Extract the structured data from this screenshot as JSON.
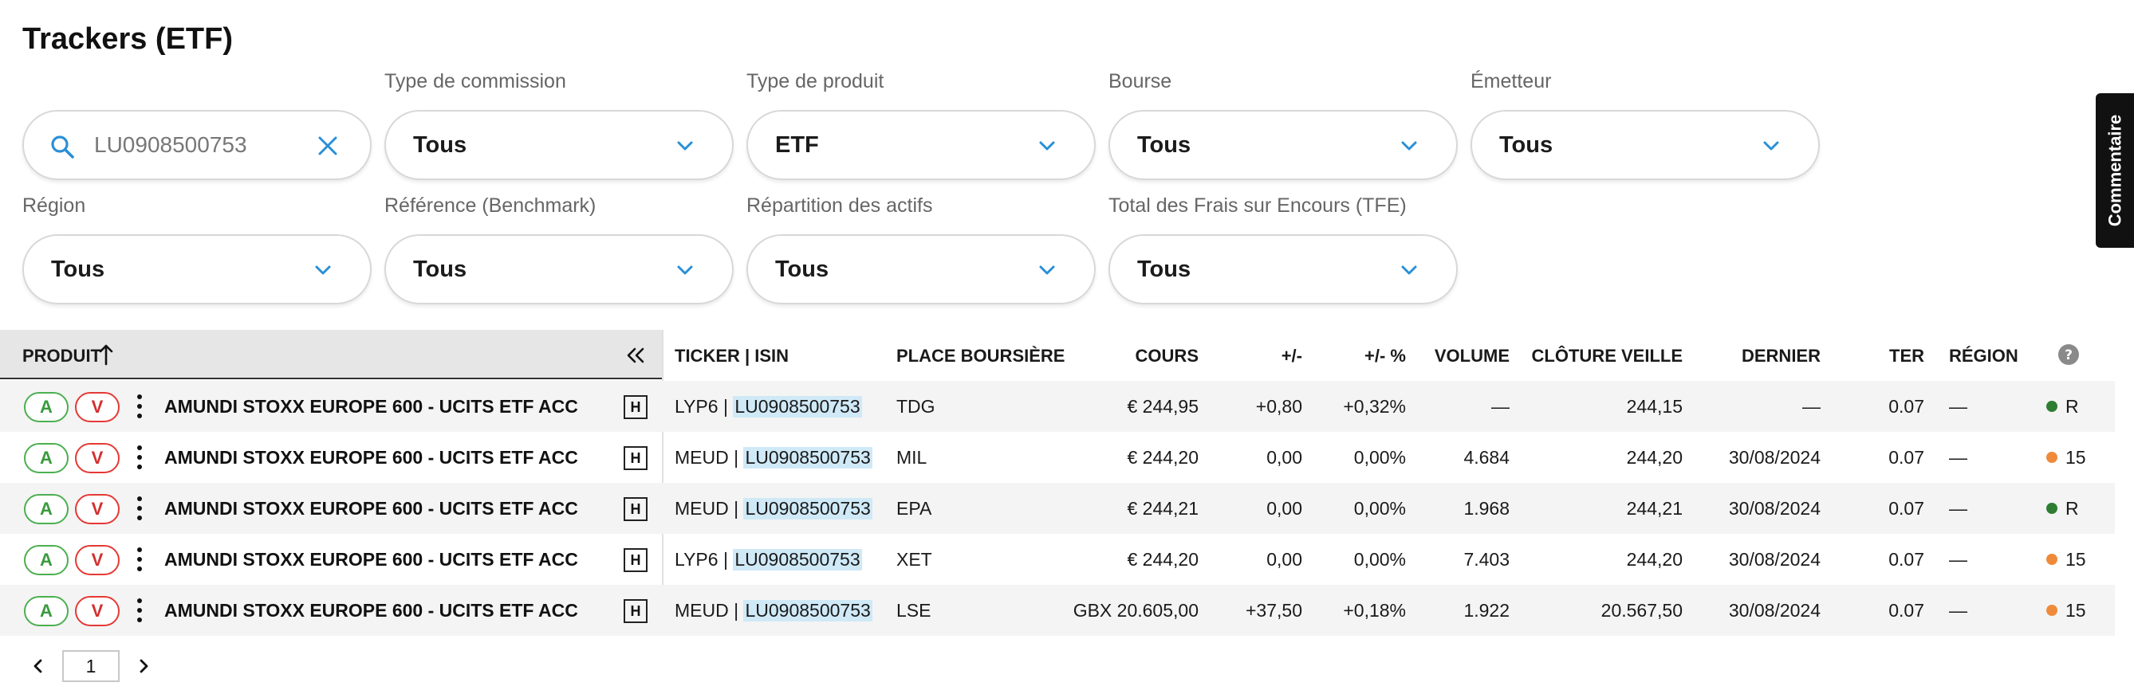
{
  "page": {
    "title": "Trackers (ETF)"
  },
  "filters": {
    "search": {
      "value": "LU0908500753"
    },
    "row1": [
      {
        "label": "Type de commission",
        "value": "Tous"
      },
      {
        "label": "Type de produit",
        "value": "ETF"
      },
      {
        "label": "Bourse",
        "value": "Tous"
      },
      {
        "label": "Émetteur",
        "value": "Tous"
      }
    ],
    "row2": [
      {
        "label": "Région",
        "value": "Tous"
      },
      {
        "label": "Référence (Benchmark)",
        "value": "Tous"
      },
      {
        "label": "Répartition des actifs",
        "value": "Tous"
      },
      {
        "label": "Total des Frais sur Encours (TFE)",
        "value": "Tous"
      }
    ]
  },
  "side_tab": {
    "label": "Commentaire"
  },
  "table": {
    "headers": {
      "produit": "PRODUIT",
      "ticker_isin": "TICKER | ISIN",
      "place": "PLACE BOURSIÈRE",
      "cours": "COURS",
      "var": "+/-",
      "var_pct": "+/- %",
      "volume": "VOLUME",
      "cloture": "CLÔTURE VEILLE",
      "dernier": "DERNIER",
      "ter": "TER",
      "region": "RÉGION"
    },
    "buy_label": "A",
    "sell_label": "V",
    "h_label": "H",
    "rows": [
      {
        "name": "AMUNDI STOXX EUROPE 600 - UCITS ETF ACC",
        "ticker": "LYP6 | ",
        "isin": "LU0908500753",
        "place": "TDG",
        "cours": "€ 244,95",
        "var": "+0,80",
        "var_pct": "+0,32%",
        "volume": "—",
        "cloture": "244,15",
        "dernier": "—",
        "ter": "0.07",
        "region": "—",
        "status_color": "#2e7d32",
        "status": "R",
        "positive": true
      },
      {
        "name": "AMUNDI STOXX EUROPE 600 - UCITS ETF ACC",
        "ticker": "MEUD | ",
        "isin": "LU0908500753",
        "place": "MIL",
        "cours": "€ 244,20",
        "var": "0,00",
        "var_pct": "0,00%",
        "volume": "4.684",
        "cloture": "244,20",
        "dernier": "30/08/2024",
        "ter": "0.07",
        "region": "—",
        "status_color": "#ef8a3a",
        "status": "15",
        "positive": false
      },
      {
        "name": "AMUNDI STOXX EUROPE 600 - UCITS ETF ACC",
        "ticker": "MEUD | ",
        "isin": "LU0908500753",
        "place": "EPA",
        "cours": "€ 244,21",
        "var": "0,00",
        "var_pct": "0,00%",
        "volume": "1.968",
        "cloture": "244,21",
        "dernier": "30/08/2024",
        "ter": "0.07",
        "region": "—",
        "status_color": "#2e7d32",
        "status": "R",
        "positive": false
      },
      {
        "name": "AMUNDI STOXX EUROPE 600 - UCITS ETF ACC",
        "ticker": "LYP6 | ",
        "isin": "LU0908500753",
        "place": "XET",
        "cours": "€ 244,20",
        "var": "0,00",
        "var_pct": "0,00%",
        "volume": "7.403",
        "cloture": "244,20",
        "dernier": "30/08/2024",
        "ter": "0.07",
        "region": "—",
        "status_color": "#ef8a3a",
        "status": "15",
        "positive": false
      },
      {
        "name": "AMUNDI STOXX EUROPE 600 - UCITS ETF ACC",
        "ticker": "MEUD | ",
        "isin": "LU0908500753",
        "place": "LSE",
        "cours": "GBX 20.605,00",
        "var": "+37,50",
        "var_pct": "+0,18%",
        "volume": "1.922",
        "cloture": "20.567,50",
        "dernier": "30/08/2024",
        "ter": "0.07",
        "region": "—",
        "status_color": "#ef8a3a",
        "status": "15",
        "positive": true
      }
    ]
  },
  "pagination": {
    "page": "1"
  },
  "icons": {
    "search": "search-icon",
    "clear": "close-icon",
    "chevron": "chevron-down-icon",
    "sort": "arrow-up-icon",
    "collapse": "double-chevron-left-icon",
    "help": "help-circle-icon",
    "more": "kebab-icon",
    "prev": "chevron-left-icon",
    "next": "chevron-right-icon"
  },
  "colors": {
    "accent": "#2a8fd6",
    "positive": "#3a9a3e",
    "buy": "#4caf50",
    "sell": "#e53935",
    "isin_highlight": "#cfe9f7"
  }
}
